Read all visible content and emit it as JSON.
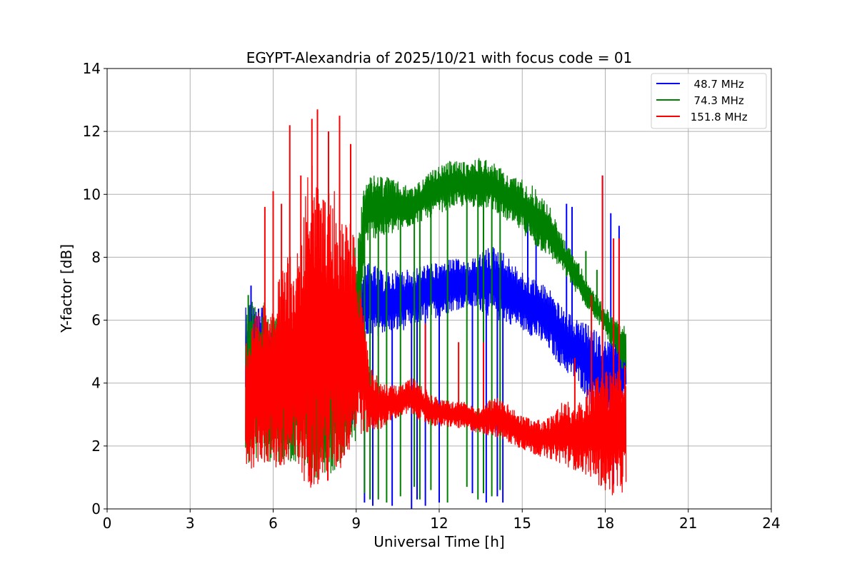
{
  "chart_data": {
    "type": "line",
    "title": "EGYPT-Alexandria of 2025/10/21 with focus code = 01",
    "xlabel": "Universal Time [h]",
    "ylabel": "Y-factor [dB]",
    "xlim": [
      0,
      24
    ],
    "ylim": [
      0,
      14
    ],
    "xticks": [
      "0",
      "3",
      "6",
      "9",
      "12",
      "15",
      "18",
      "21",
      "24"
    ],
    "yticks": [
      "0",
      "2",
      "4",
      "6",
      "8",
      "10",
      "12",
      "14"
    ],
    "grid": true,
    "legend_position": "top-right",
    "series": [
      {
        "name": "  48.7 MHz",
        "color": "#0000ff",
        "envelope": {
          "x": [
            5.0,
            5.3,
            5.6,
            6.0,
            6.5,
            7.0,
            7.5,
            8.0,
            8.5,
            9.0,
            9.3,
            9.6,
            10.0,
            10.5,
            11.0,
            11.5,
            12.0,
            12.5,
            13.0,
            13.5,
            14.0,
            14.5,
            15.0,
            15.5,
            16.0,
            16.5,
            17.0,
            17.5,
            18.0,
            18.4,
            18.75
          ],
          "low": [
            3.0,
            3.0,
            2.5,
            2.5,
            2.5,
            2.5,
            2.5,
            2.5,
            2.5,
            2.6,
            5.5,
            5.4,
            5.6,
            5.6,
            5.8,
            6.0,
            6.1,
            6.3,
            6.4,
            6.3,
            6.0,
            5.9,
            5.7,
            5.4,
            5.0,
            4.4,
            4.0,
            3.3,
            2.8,
            3.0,
            3.5
          ],
          "high": [
            6.8,
            6.6,
            6.4,
            6.2,
            6.0,
            6.0,
            6.0,
            6.4,
            7.0,
            7.3,
            7.8,
            7.8,
            7.5,
            7.6,
            7.6,
            7.8,
            7.8,
            8.0,
            7.8,
            8.2,
            8.4,
            8.0,
            7.5,
            7.3,
            7.0,
            6.3,
            6.0,
            5.8,
            5.4,
            5.4,
            5.2
          ]
        },
        "spikes": [
          [
            5.2,
            7.1
          ],
          [
            9.3,
            0.2
          ],
          [
            9.6,
            0.1
          ],
          [
            10.3,
            0.1
          ],
          [
            11.0,
            0.0
          ],
          [
            11.2,
            0.3
          ],
          [
            11.5,
            0.1
          ],
          [
            12.0,
            0.2
          ],
          [
            13.2,
            0.5
          ],
          [
            13.7,
            0.2
          ],
          [
            14.1,
            0.4
          ],
          [
            14.3,
            0.2
          ],
          [
            15.2,
            9.2
          ],
          [
            15.5,
            8.6
          ],
          [
            16.6,
            9.7
          ],
          [
            16.8,
            9.6
          ],
          [
            17.9,
            10.6
          ],
          [
            18.2,
            9.4
          ],
          [
            18.3,
            0.8
          ],
          [
            18.5,
            9.0
          ]
        ]
      },
      {
        "name": "  74.3 MHz",
        "color": "#008000",
        "envelope": {
          "x": [
            5.0,
            5.3,
            5.6,
            6.0,
            6.5,
            7.0,
            7.5,
            8.0,
            8.5,
            9.0,
            9.3,
            9.6,
            10.0,
            10.5,
            11.0,
            11.5,
            12.0,
            12.5,
            13.0,
            13.5,
            14.0,
            14.5,
            15.0,
            15.5,
            16.0,
            16.5,
            17.0,
            17.5,
            18.0,
            18.4,
            18.75
          ],
          "low": [
            1.4,
            1.5,
            1.5,
            1.5,
            1.5,
            1.5,
            1.0,
            1.0,
            1.5,
            2.0,
            8.4,
            8.6,
            8.6,
            8.8,
            9.0,
            9.2,
            9.4,
            9.6,
            9.6,
            9.6,
            9.5,
            9.1,
            8.8,
            8.3,
            8.0,
            7.5,
            6.8,
            6.2,
            5.6,
            4.8,
            4.2
          ],
          "high": [
            6.6,
            6.6,
            6.6,
            6.4,
            6.0,
            5.8,
            5.6,
            5.8,
            6.5,
            8.5,
            10.4,
            10.6,
            10.6,
            10.4,
            10.2,
            10.6,
            10.9,
            11.1,
            11.0,
            11.2,
            11.0,
            10.6,
            10.5,
            10.2,
            9.6,
            8.6,
            7.9,
            7.0,
            6.4,
            6.0,
            5.9
          ]
        },
        "spikes": [
          [
            5.1,
            6.8
          ],
          [
            9.3,
            0.5
          ],
          [
            9.5,
            0.3
          ],
          [
            9.8,
            0.3
          ],
          [
            10.1,
            0.2
          ],
          [
            10.6,
            0.4
          ],
          [
            11.1,
            0.7
          ],
          [
            11.3,
            0.3
          ],
          [
            11.7,
            0.6
          ],
          [
            12.3,
            0.2
          ],
          [
            13.0,
            0.7
          ],
          [
            13.4,
            0.3
          ],
          [
            13.6,
            0.5
          ],
          [
            13.9,
            0.4
          ],
          [
            14.2,
            0.6
          ],
          [
            17.3,
            8.2
          ],
          [
            17.7,
            7.6
          ]
        ]
      },
      {
        "name": " 151.8 MHz",
        "color": "#ff0000",
        "envelope": {
          "x": [
            5.0,
            5.3,
            5.6,
            6.0,
            6.5,
            7.0,
            7.3,
            7.6,
            8.0,
            8.5,
            9.0,
            9.5,
            10.0,
            10.5,
            11.0,
            11.5,
            12.0,
            12.5,
            13.0,
            13.5,
            14.0,
            14.5,
            15.0,
            15.5,
            16.0,
            16.5,
            17.0,
            17.5,
            18.0,
            18.4,
            18.75
          ],
          "low": [
            1.2,
            1.3,
            1.5,
            1.2,
            0.9,
            0.9,
            0.7,
            0.6,
            0.6,
            1.2,
            2.3,
            2.4,
            2.6,
            2.9,
            3.0,
            2.7,
            2.6,
            2.6,
            2.5,
            2.4,
            2.3,
            2.1,
            1.9,
            1.7,
            1.6,
            1.4,
            1.2,
            1.0,
            0.5,
            0.4,
            0.6
          ],
          "high": [
            5.6,
            6.0,
            6.4,
            7.0,
            8.0,
            8.2,
            12.0,
            10.2,
            10.5,
            9.8,
            8.5,
            4.5,
            4.0,
            3.9,
            4.2,
            3.8,
            3.5,
            3.4,
            3.4,
            3.2,
            3.6,
            3.3,
            3.0,
            2.8,
            2.9,
            3.5,
            3.3,
            4.0,
            4.5,
            4.5,
            4.8
          ]
        },
        "spikes": [
          [
            5.7,
            9.6
          ],
          [
            6.0,
            10.1
          ],
          [
            6.3,
            9.7
          ],
          [
            6.6,
            12.2
          ],
          [
            7.0,
            10.6
          ],
          [
            7.4,
            12.4
          ],
          [
            7.6,
            12.7
          ],
          [
            8.0,
            12.0
          ],
          [
            8.4,
            12.5
          ],
          [
            8.8,
            11.6
          ],
          [
            9.2,
            5.6
          ],
          [
            11.5,
            5.9
          ],
          [
            12.7,
            5.3
          ],
          [
            13.6,
            5.3
          ],
          [
            16.9,
            4.8
          ],
          [
            17.5,
            6.8
          ],
          [
            17.9,
            10.6
          ],
          [
            18.3,
            8.6
          ],
          [
            18.5,
            8.6
          ]
        ]
      }
    ]
  }
}
